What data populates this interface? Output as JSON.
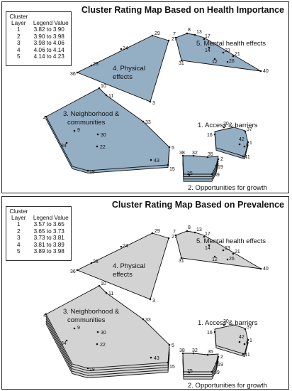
{
  "panels": [
    {
      "id": "importance",
      "title": "Cluster Rating Map Based on Health Importance",
      "fill": "#94aec4",
      "legend": {
        "col1": "Cluster Layer",
        "col2": "Legend Value",
        "rows": [
          {
            "layer": "1",
            "value": "3.82 to 3.90"
          },
          {
            "layer": "2",
            "value": "3.90 to 3.98"
          },
          {
            "layer": "3",
            "value": "3.98 to 4.06"
          },
          {
            "layer": "4",
            "value": "4.06 to 4.14"
          },
          {
            "layer": "5",
            "value": "4.14 to 4.23"
          }
        ]
      },
      "layers": {
        "physical": 1,
        "mental": 1,
        "neighborhood": 2,
        "access": 2,
        "opportunities": 4
      }
    },
    {
      "id": "prevalence",
      "title": "Cluster Rating Map Based on Prevalence",
      "fill": "#d3d3d3",
      "legend": {
        "col1": "Cluster Layer",
        "col2": "Legend Value",
        "rows": [
          {
            "layer": "1",
            "value": "3.57 to 3.65"
          },
          {
            "layer": "2",
            "value": "3.65 to 3.73"
          },
          {
            "layer": "3",
            "value": "3.73 to 3.81"
          },
          {
            "layer": "4",
            "value": "3.81 to 3.89"
          },
          {
            "layer": "5",
            "value": "3.89 to 3.98"
          }
        ]
      },
      "layers": {
        "physical": 1,
        "mental": 1,
        "neighborhood": 5,
        "access": 2,
        "opportunities": 4
      }
    }
  ],
  "clusters": {
    "physical": {
      "label1": "4. Physical",
      "label2": "effects",
      "points": [
        "29",
        "27",
        "24",
        "28",
        "36",
        "3"
      ]
    },
    "mental": {
      "label1": "5. Mental health effects",
      "points": [
        "7",
        "8",
        "13",
        "17",
        "14",
        "23",
        "21",
        "12",
        "26",
        "31",
        "40"
      ]
    },
    "neighborhood": {
      "label1": "3. Neighborhood &",
      "label2": "communities",
      "points": [
        "10",
        "11",
        "4",
        "33",
        "9",
        "30",
        "34",
        "22",
        "5",
        "43",
        "18",
        "15"
      ]
    },
    "access": {
      "label1": "1. Access & barriers",
      "points": [
        "20",
        "16",
        "37",
        "1",
        "42",
        "6",
        "41"
      ]
    },
    "opportunities": {
      "label1": "2. Opportunities for growth",
      "points": [
        "38",
        "32",
        "35",
        "2",
        "19",
        "25",
        "39"
      ]
    }
  }
}
